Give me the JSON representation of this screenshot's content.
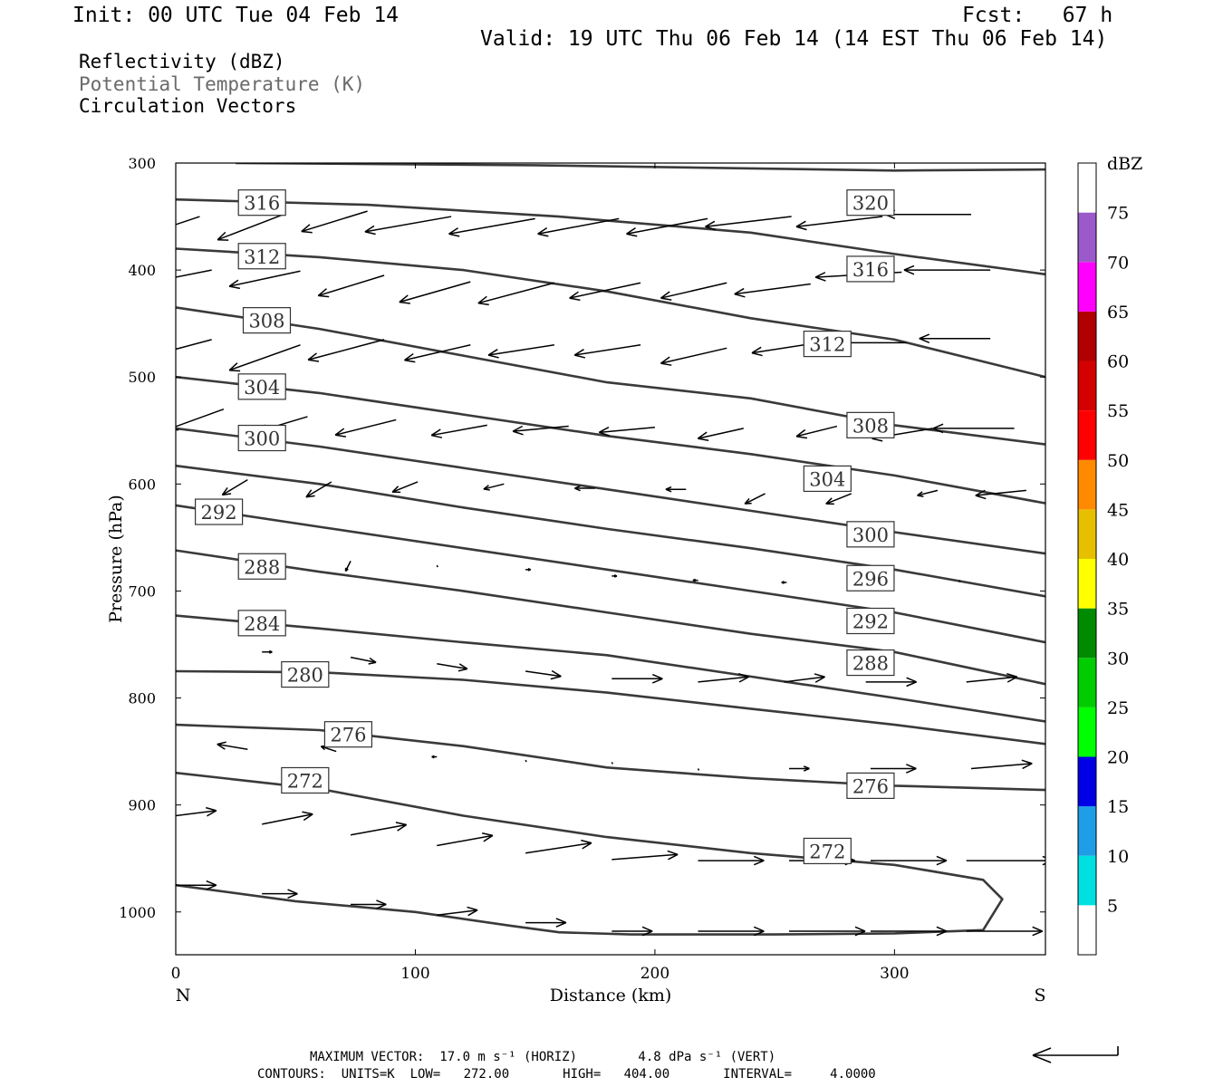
{
  "header": {
    "init": "Init: 00 UTC Tue 04 Feb 14",
    "fcst": "Fcst:   67 h",
    "valid": "Valid: 19 UTC Thu 06 Feb 14 (14 EST Thu 06 Feb 14)"
  },
  "fields": {
    "reflectivity": "Reflectivity (dBZ)",
    "theta": "Potential Temperature (K)",
    "vectors": "Circulation Vectors"
  },
  "footer": {
    "max_vector": "MAXIMUM VECTOR:  17.0 m s⁻¹ (HORIZ)        4.8 dPa s⁻¹ (VERT)",
    "contours": "CONTOURS:  UNITS=K  LOW=   272.00       HIGH=   404.00       INTERVAL=     4.0000"
  },
  "colors": {
    "contour": "#3a3a3a",
    "palette": [
      "#ffffff",
      "#00e0e0",
      "#1e9ee6",
      "#0000e6",
      "#00ff00",
      "#00cc00",
      "#008a00",
      "#ffff00",
      "#e6c000",
      "#ff8a00",
      "#ff0000",
      "#d40000",
      "#b00000",
      "#ff00ff",
      "#9b59c9",
      "#ffffff"
    ]
  },
  "chart_data": {
    "type": "cross-section",
    "xlabel": "Distance (km)",
    "ylabel": "Pressure (hPa)",
    "x_ticks": [
      0,
      100,
      200,
      300
    ],
    "y_ticks": [
      300,
      400,
      500,
      600,
      700,
      800,
      900,
      1000
    ],
    "xlim": [
      0,
      363
    ],
    "ylim": [
      300,
      1040
    ],
    "y_inverted": true,
    "left_end_label": "N",
    "right_end_label": "S",
    "colorbar": {
      "title": "dBZ",
      "levels": [
        5,
        10,
        15,
        20,
        25,
        30,
        35,
        40,
        45,
        50,
        55,
        60,
        65,
        70,
        75
      ],
      "range": [
        0,
        80
      ]
    },
    "isentropes": [
      {
        "theta": 320,
        "points": [
          [
            25,
            300
          ],
          [
            150,
            302
          ],
          [
            240,
            305
          ],
          [
            300,
            307
          ],
          [
            363,
            306
          ]
        ],
        "labels": [
          [
            290,
            337
          ]
        ]
      },
      {
        "theta": 316,
        "points": [
          [
            0,
            334
          ],
          [
            80,
            339
          ],
          [
            160,
            350
          ],
          [
            240,
            365
          ],
          [
            300,
            385
          ],
          [
            363,
            404
          ]
        ],
        "labels": [
          [
            36,
            337
          ],
          [
            290,
            399
          ]
        ]
      },
      {
        "theta": 312,
        "points": [
          [
            0,
            380
          ],
          [
            60,
            388
          ],
          [
            120,
            400
          ],
          [
            180,
            420
          ],
          [
            240,
            445
          ],
          [
            300,
            465
          ],
          [
            363,
            500
          ]
        ],
        "labels": [
          [
            36,
            387
          ],
          [
            272,
            469
          ]
        ]
      },
      {
        "theta": 308,
        "points": [
          [
            0,
            435
          ],
          [
            60,
            455
          ],
          [
            120,
            480
          ],
          [
            180,
            505
          ],
          [
            240,
            520
          ],
          [
            300,
            545
          ],
          [
            363,
            563
          ]
        ],
        "labels": [
          [
            38,
            447
          ],
          [
            290,
            545
          ]
        ]
      },
      {
        "theta": 304,
        "points": [
          [
            0,
            500
          ],
          [
            60,
            515
          ],
          [
            120,
            535
          ],
          [
            180,
            555
          ],
          [
            240,
            572
          ],
          [
            300,
            592
          ],
          [
            363,
            618
          ]
        ],
        "labels": [
          [
            36,
            509
          ],
          [
            272,
            595
          ]
        ]
      },
      {
        "theta": 300,
        "points": [
          [
            0,
            548
          ],
          [
            60,
            565
          ],
          [
            120,
            585
          ],
          [
            180,
            605
          ],
          [
            240,
            625
          ],
          [
            300,
            645
          ],
          [
            363,
            665
          ]
        ],
        "labels": [
          [
            36,
            557
          ],
          [
            290,
            647
          ]
        ]
      },
      {
        "theta": 296,
        "points": [
          [
            0,
            583
          ],
          [
            60,
            600
          ],
          [
            120,
            622
          ],
          [
            180,
            642
          ],
          [
            240,
            660
          ],
          [
            300,
            680
          ],
          [
            363,
            705
          ]
        ],
        "labels": [
          [
            290,
            688
          ]
        ]
      },
      {
        "theta": 292,
        "points": [
          [
            0,
            620
          ],
          [
            60,
            640
          ],
          [
            120,
            660
          ],
          [
            180,
            680
          ],
          [
            240,
            700
          ],
          [
            300,
            720
          ],
          [
            363,
            748
          ]
        ],
        "labels": [
          [
            18,
            626
          ],
          [
            290,
            728
          ]
        ]
      },
      {
        "theta": 288,
        "points": [
          [
            0,
            662
          ],
          [
            60,
            682
          ],
          [
            120,
            700
          ],
          [
            180,
            720
          ],
          [
            240,
            740
          ],
          [
            300,
            757
          ],
          [
            363,
            787
          ]
        ],
        "labels": [
          [
            36,
            677
          ],
          [
            290,
            767
          ]
        ]
      },
      {
        "theta": 284,
        "points": [
          [
            0,
            723
          ],
          [
            60,
            735
          ],
          [
            120,
            748
          ],
          [
            180,
            760
          ],
          [
            240,
            780
          ],
          [
            300,
            800
          ],
          [
            363,
            822
          ]
        ],
        "labels": [
          [
            36,
            730
          ]
        ]
      },
      {
        "theta": 280,
        "points": [
          [
            0,
            775
          ],
          [
            60,
            776
          ],
          [
            120,
            783
          ],
          [
            180,
            795
          ],
          [
            240,
            810
          ],
          [
            300,
            825
          ],
          [
            363,
            843
          ]
        ],
        "labels": [
          [
            54,
            778
          ]
        ]
      },
      {
        "theta": 276,
        "points": [
          [
            0,
            825
          ],
          [
            60,
            830
          ],
          [
            120,
            845
          ],
          [
            180,
            865
          ],
          [
            240,
            875
          ],
          [
            300,
            882
          ],
          [
            363,
            886
          ]
        ],
        "labels": [
          [
            72,
            834
          ],
          [
            290,
            882
          ]
        ]
      },
      {
        "theta": 272,
        "points": [
          [
            0,
            870
          ],
          [
            60,
            885
          ],
          [
            120,
            910
          ],
          [
            180,
            930
          ],
          [
            240,
            945
          ],
          [
            300,
            956
          ],
          [
            337,
            970
          ],
          [
            345,
            988
          ],
          [
            337,
            1017
          ],
          [
            300,
            1020
          ],
          [
            250,
            1021
          ],
          [
            190,
            1021
          ],
          [
            160,
            1019
          ],
          [
            140,
            1013
          ],
          [
            100,
            1000
          ],
          [
            50,
            990
          ],
          [
            0,
            975
          ]
        ],
        "labels": [
          [
            54,
            877
          ],
          [
            272,
            943
          ]
        ]
      }
    ],
    "circulation_vectors": [
      [
        10,
        350,
        -15,
        5
      ],
      [
        45,
        348,
        -13,
        5
      ],
      [
        80,
        345,
        -13,
        4
      ],
      [
        115,
        350,
        -17,
        3
      ],
      [
        150,
        352,
        -17,
        3
      ],
      [
        185,
        352,
        -16,
        3
      ],
      [
        222,
        352,
        -16,
        3
      ],
      [
        257,
        350,
        -17,
        2
      ],
      [
        295,
        350,
        -17,
        2
      ],
      [
        332,
        348,
        -17,
        0
      ],
      [
        15,
        400,
        -15,
        3
      ],
      [
        52,
        401,
        -14,
        3
      ],
      [
        87,
        405,
        -13,
        4
      ],
      [
        123,
        411,
        -14,
        4
      ],
      [
        158,
        412,
        -15,
        4
      ],
      [
        194,
        412,
        -14,
        3
      ],
      [
        230,
        412,
        -13,
        3
      ],
      [
        265,
        413,
        -15,
        2
      ],
      [
        303,
        402,
        -17,
        1
      ],
      [
        340,
        400,
        -17,
        0
      ],
      [
        15,
        465,
        -15,
        4
      ],
      [
        52,
        470,
        -14,
        5
      ],
      [
        87,
        465,
        -15,
        4
      ],
      [
        123,
        470,
        -13,
        3
      ],
      [
        158,
        470,
        -13,
        2
      ],
      [
        194,
        470,
        -13,
        2
      ],
      [
        230,
        473,
        -13,
        3
      ],
      [
        268,
        468,
        -13,
        2
      ],
      [
        305,
        468,
        -13,
        0
      ],
      [
        340,
        464,
        -14,
        0
      ],
      [
        20,
        530,
        -11,
        4
      ],
      [
        55,
        537,
        -10,
        3
      ],
      [
        92,
        540,
        -12,
        3
      ],
      [
        130,
        545,
        -11,
        2
      ],
      [
        164,
        546,
        -11,
        1
      ],
      [
        200,
        547,
        -11,
        1
      ],
      [
        237,
        548,
        -9,
        2
      ],
      [
        276,
        546,
        -8,
        2
      ],
      [
        316,
        548,
        -12,
        2
      ],
      [
        350,
        548,
        -16,
        0
      ],
      [
        30,
        596,
        -5,
        3
      ],
      [
        65,
        598,
        -5,
        3
      ],
      [
        101,
        598,
        -5,
        2
      ],
      [
        137,
        600,
        -4,
        1
      ],
      [
        175,
        604,
        -4,
        0
      ],
      [
        213,
        605,
        -4,
        0
      ],
      [
        246,
        609,
        -4,
        2
      ],
      [
        282,
        609,
        -5,
        2
      ],
      [
        318,
        606,
        -4,
        1
      ],
      [
        355,
        606,
        -10,
        1
      ],
      [
        36,
        666,
        -1,
        3
      ],
      [
        73,
        672,
        -1,
        2
      ],
      [
        109,
        676,
        0,
        0
      ],
      [
        146,
        680,
        1,
        0
      ],
      [
        182,
        686,
        1,
        0
      ],
      [
        218,
        690,
        -1,
        0
      ],
      [
        255,
        692,
        -1,
        0
      ],
      [
        327,
        690,
        0,
        0
      ],
      [
        36,
        757,
        2,
        0
      ],
      [
        73,
        762,
        5,
        1
      ],
      [
        109,
        768,
        6,
        1
      ],
      [
        146,
        775,
        7,
        1
      ],
      [
        182,
        782,
        10,
        0
      ],
      [
        218,
        785,
        10,
        -1
      ],
      [
        254,
        785,
        8,
        -1
      ],
      [
        288,
        785,
        10,
        0
      ],
      [
        330,
        785,
        10,
        -1
      ],
      [
        30,
        848,
        -6,
        -1
      ],
      [
        67,
        850,
        -3,
        -1
      ],
      [
        109,
        855,
        -1,
        0
      ],
      [
        146,
        858,
        0,
        0
      ],
      [
        182,
        860,
        0,
        0
      ],
      [
        218,
        866,
        0,
        0
      ],
      [
        256,
        866,
        4,
        0
      ],
      [
        290,
        866,
        9,
        0
      ],
      [
        332,
        866,
        12,
        -1
      ],
      [
        0,
        910,
        8,
        -1
      ],
      [
        36,
        918,
        10,
        -2
      ],
      [
        73,
        928,
        11,
        -2
      ],
      [
        109,
        938,
        11,
        -2
      ],
      [
        146,
        945,
        13,
        -2
      ],
      [
        182,
        951,
        13,
        -1
      ],
      [
        218,
        952,
        13,
        0
      ],
      [
        256,
        952,
        13,
        0
      ],
      [
        290,
        952,
        15,
        0
      ],
      [
        330,
        952,
        17,
        0
      ],
      [
        0,
        975,
        8,
        0
      ],
      [
        36,
        983,
        7,
        0
      ],
      [
        73,
        993,
        7,
        0
      ],
      [
        109,
        1003,
        8,
        -1
      ],
      [
        146,
        1010,
        8,
        0
      ],
      [
        182,
        1018,
        8,
        0
      ],
      [
        218,
        1018,
        13,
        0
      ],
      [
        256,
        1018,
        15,
        0
      ],
      [
        290,
        1018,
        15,
        0
      ],
      [
        330,
        1018,
        15,
        0
      ]
    ]
  }
}
